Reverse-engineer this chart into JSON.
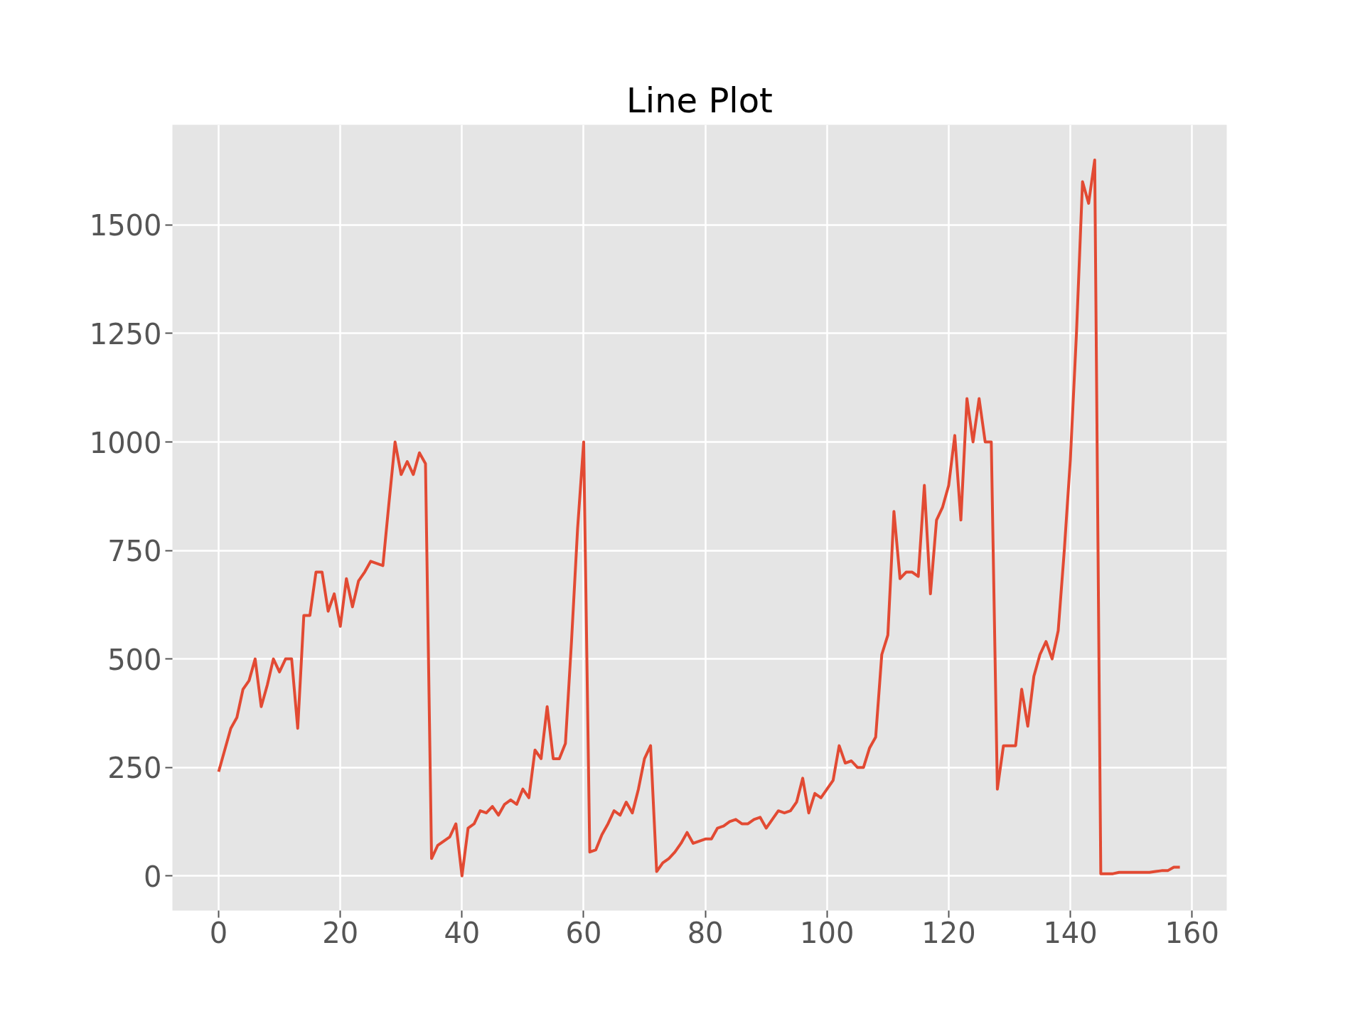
{
  "chart_data": {
    "type": "line",
    "title": "Line Plot",
    "x": [
      0,
      1,
      2,
      3,
      4,
      5,
      6,
      7,
      8,
      9,
      10,
      11,
      12,
      13,
      14,
      15,
      16,
      17,
      18,
      19,
      20,
      21,
      22,
      23,
      24,
      25,
      26,
      27,
      28,
      29,
      30,
      31,
      32,
      33,
      34,
      35,
      36,
      37,
      38,
      39,
      40,
      41,
      42,
      43,
      44,
      45,
      46,
      47,
      48,
      49,
      50,
      51,
      52,
      53,
      54,
      55,
      56,
      57,
      58,
      59,
      60,
      61,
      62,
      63,
      64,
      65,
      66,
      67,
      68,
      69,
      70,
      71,
      72,
      73,
      74,
      75,
      76,
      77,
      78,
      79,
      80,
      81,
      82,
      83,
      84,
      85,
      86,
      87,
      88,
      89,
      90,
      91,
      92,
      93,
      94,
      95,
      96,
      97,
      98,
      99,
      100,
      101,
      102,
      103,
      104,
      105,
      106,
      107,
      108,
      109,
      110,
      111,
      112,
      113,
      114,
      115,
      116,
      117,
      118,
      119,
      120,
      121,
      122,
      123,
      124,
      125,
      126,
      127,
      128,
      129,
      130,
      131,
      132,
      133,
      134,
      135,
      136,
      137,
      138,
      139,
      140,
      141,
      142,
      143,
      144,
      145,
      146,
      147,
      148,
      149,
      150,
      151,
      152,
      153,
      154,
      155,
      156,
      157,
      158
    ],
    "series": [
      {
        "color": "#e24a33",
        "values": [
          240,
          290,
          340,
          365,
          430,
          450,
          500,
          390,
          440,
          500,
          470,
          500,
          500,
          340,
          600,
          600,
          700,
          700,
          610,
          650,
          575,
          685,
          620,
          680,
          700,
          725,
          720,
          715,
          860,
          1000,
          925,
          955,
          925,
          975,
          950,
          40,
          70,
          80,
          90,
          120,
          0,
          110,
          120,
          150,
          145,
          160,
          140,
          165,
          175,
          165,
          200,
          180,
          290,
          270,
          390,
          270,
          270,
          305,
          540,
          800,
          1000,
          55,
          60,
          95,
          120,
          150,
          140,
          170,
          145,
          200,
          270,
          300,
          10,
          30,
          40,
          55,
          75,
          100,
          75,
          80,
          85,
          85,
          110,
          115,
          125,
          130,
          120,
          120,
          130,
          135,
          110,
          130,
          150,
          145,
          150,
          170,
          225,
          145,
          190,
          180,
          200,
          220,
          300,
          260,
          265,
          250,
          250,
          295,
          320,
          510,
          555,
          840,
          685,
          700,
          700,
          690,
          900,
          650,
          820,
          850,
          900,
          1015,
          820,
          1100,
          1000,
          1100,
          1000,
          1000,
          200,
          300,
          300,
          300,
          430,
          345,
          460,
          510,
          540,
          500,
          565,
          750,
          960,
          1250,
          1600,
          1550,
          1650,
          5,
          5,
          5,
          8,
          8,
          8,
          8,
          8,
          8,
          10,
          12,
          12,
          20,
          20
        ]
      }
    ],
    "xlim": [
      -7.6,
      165.7
    ],
    "ylim": [
      -80,
      1731
    ],
    "xticks": [
      0,
      20,
      40,
      60,
      80,
      100,
      120,
      140,
      160
    ],
    "yticks": [
      0,
      250,
      500,
      750,
      1000,
      1250,
      1500
    ],
    "grid": true,
    "marker": "none",
    "line_style": "solid"
  }
}
